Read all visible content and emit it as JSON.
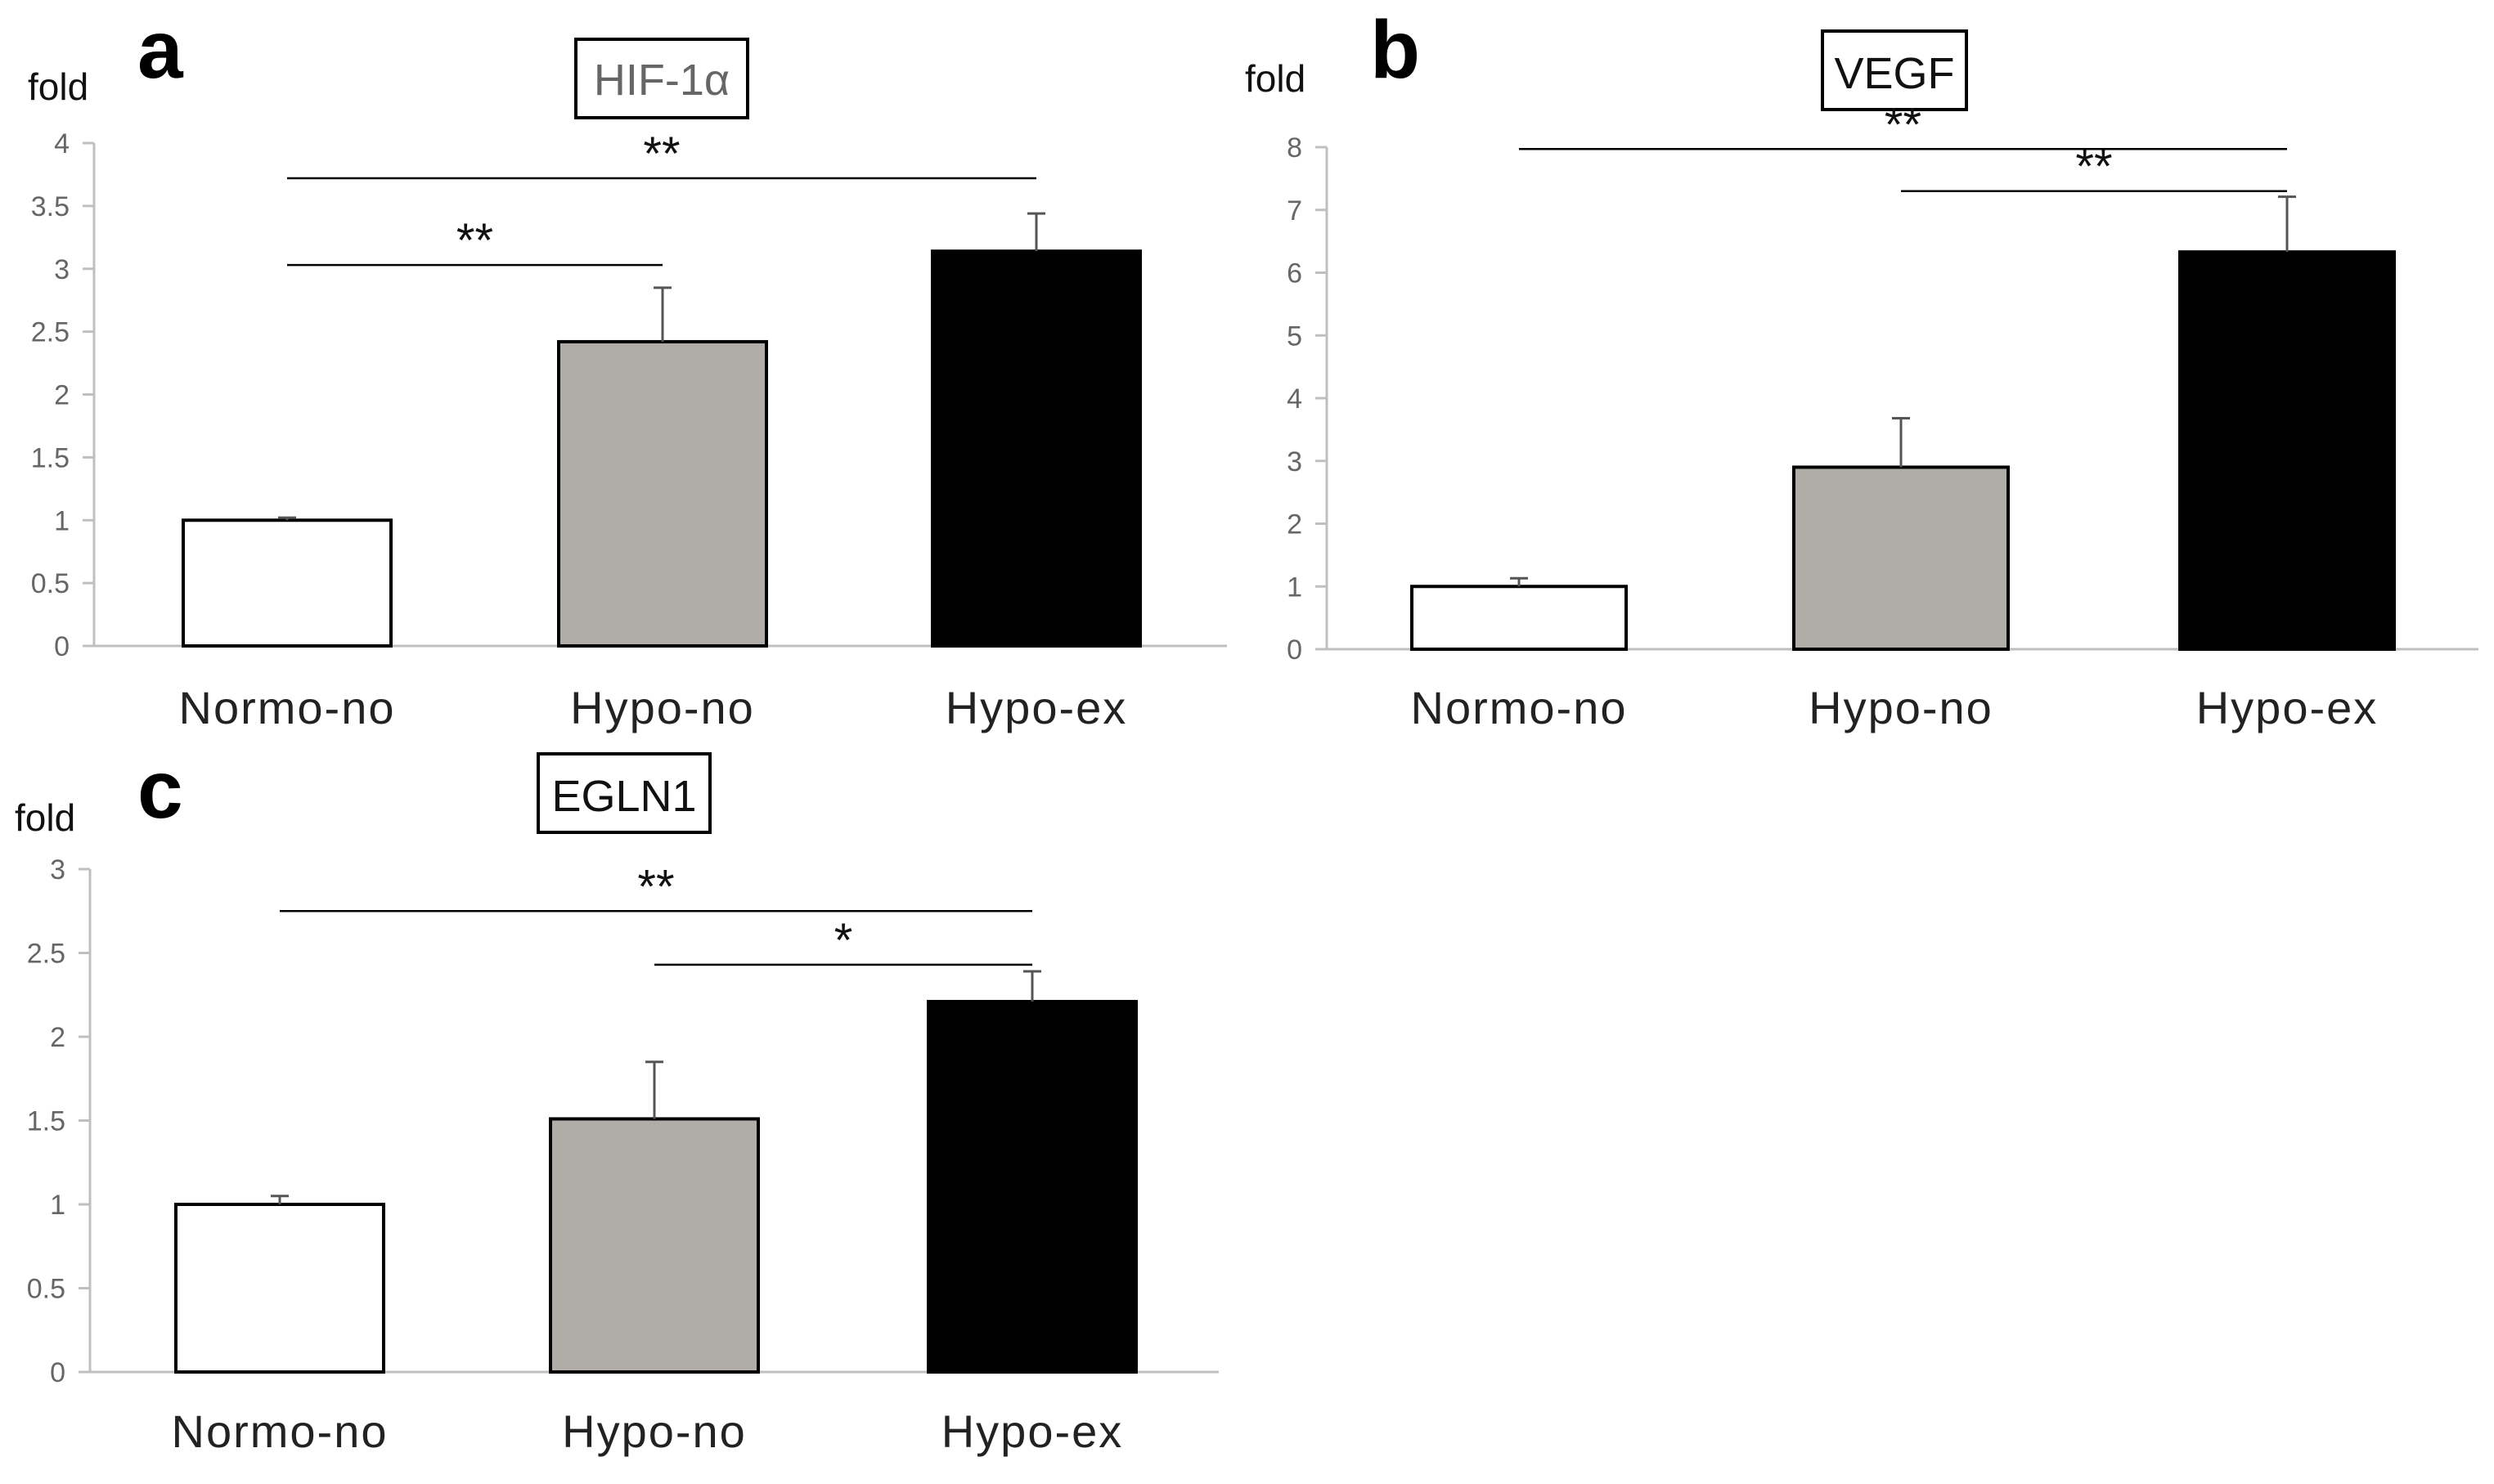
{
  "chart_data": [
    {
      "type": "bar",
      "panel": "a",
      "title": "HIF-1α",
      "ylabel": "fold",
      "categories": [
        "Normo-no",
        "Hypo-no",
        "Hypo-ex"
      ],
      "values": [
        1.0,
        2.42,
        3.14
      ],
      "errors": [
        0.02,
        0.43,
        0.3
      ],
      "colors": [
        "#ffffff",
        "#b0aca8",
        "#000000"
      ],
      "ylim": [
        0,
        4
      ],
      "yticks": [
        0,
        0.5,
        1,
        1.5,
        2,
        2.5,
        3,
        3.5,
        4
      ],
      "significance": [
        {
          "from": 0,
          "to": 1,
          "y": 3.03,
          "label": "**"
        },
        {
          "from": 0,
          "to": 2,
          "y": 3.72,
          "label": "**"
        }
      ]
    },
    {
      "type": "bar",
      "panel": "b",
      "title": "VEGF",
      "ylabel": "fold",
      "categories": [
        "Normo-no",
        "Hypo-no",
        "Hypo-ex"
      ],
      "values": [
        1.0,
        2.9,
        6.33
      ],
      "errors": [
        0.13,
        0.78,
        0.88
      ],
      "colors": [
        "#ffffff",
        "#b0aca8",
        "#000000"
      ],
      "ylim": [
        0,
        8
      ],
      "yticks": [
        0,
        1,
        2,
        3,
        4,
        5,
        6,
        7,
        8
      ],
      "significance": [
        {
          "from": 1,
          "to": 2,
          "y": 7.3,
          "label": "**"
        },
        {
          "from": 0,
          "to": 2,
          "y": 7.97,
          "label": "**"
        }
      ]
    },
    {
      "type": "bar",
      "panel": "c",
      "title": "EGLN1",
      "ylabel": "fold",
      "categories": [
        "Normo-no",
        "Hypo-no",
        "Hypo-ex"
      ],
      "values": [
        1.0,
        1.51,
        2.21
      ],
      "errors": [
        0.05,
        0.34,
        0.18
      ],
      "colors": [
        "#ffffff",
        "#b0aca8",
        "#000000"
      ],
      "ylim": [
        0,
        3
      ],
      "yticks": [
        0,
        0.5,
        1,
        1.5,
        2,
        2.5,
        3
      ],
      "significance": [
        {
          "from": 1,
          "to": 2,
          "y": 2.43,
          "label": "*"
        },
        {
          "from": 0,
          "to": 2,
          "y": 2.75,
          "label": "**"
        }
      ]
    }
  ]
}
